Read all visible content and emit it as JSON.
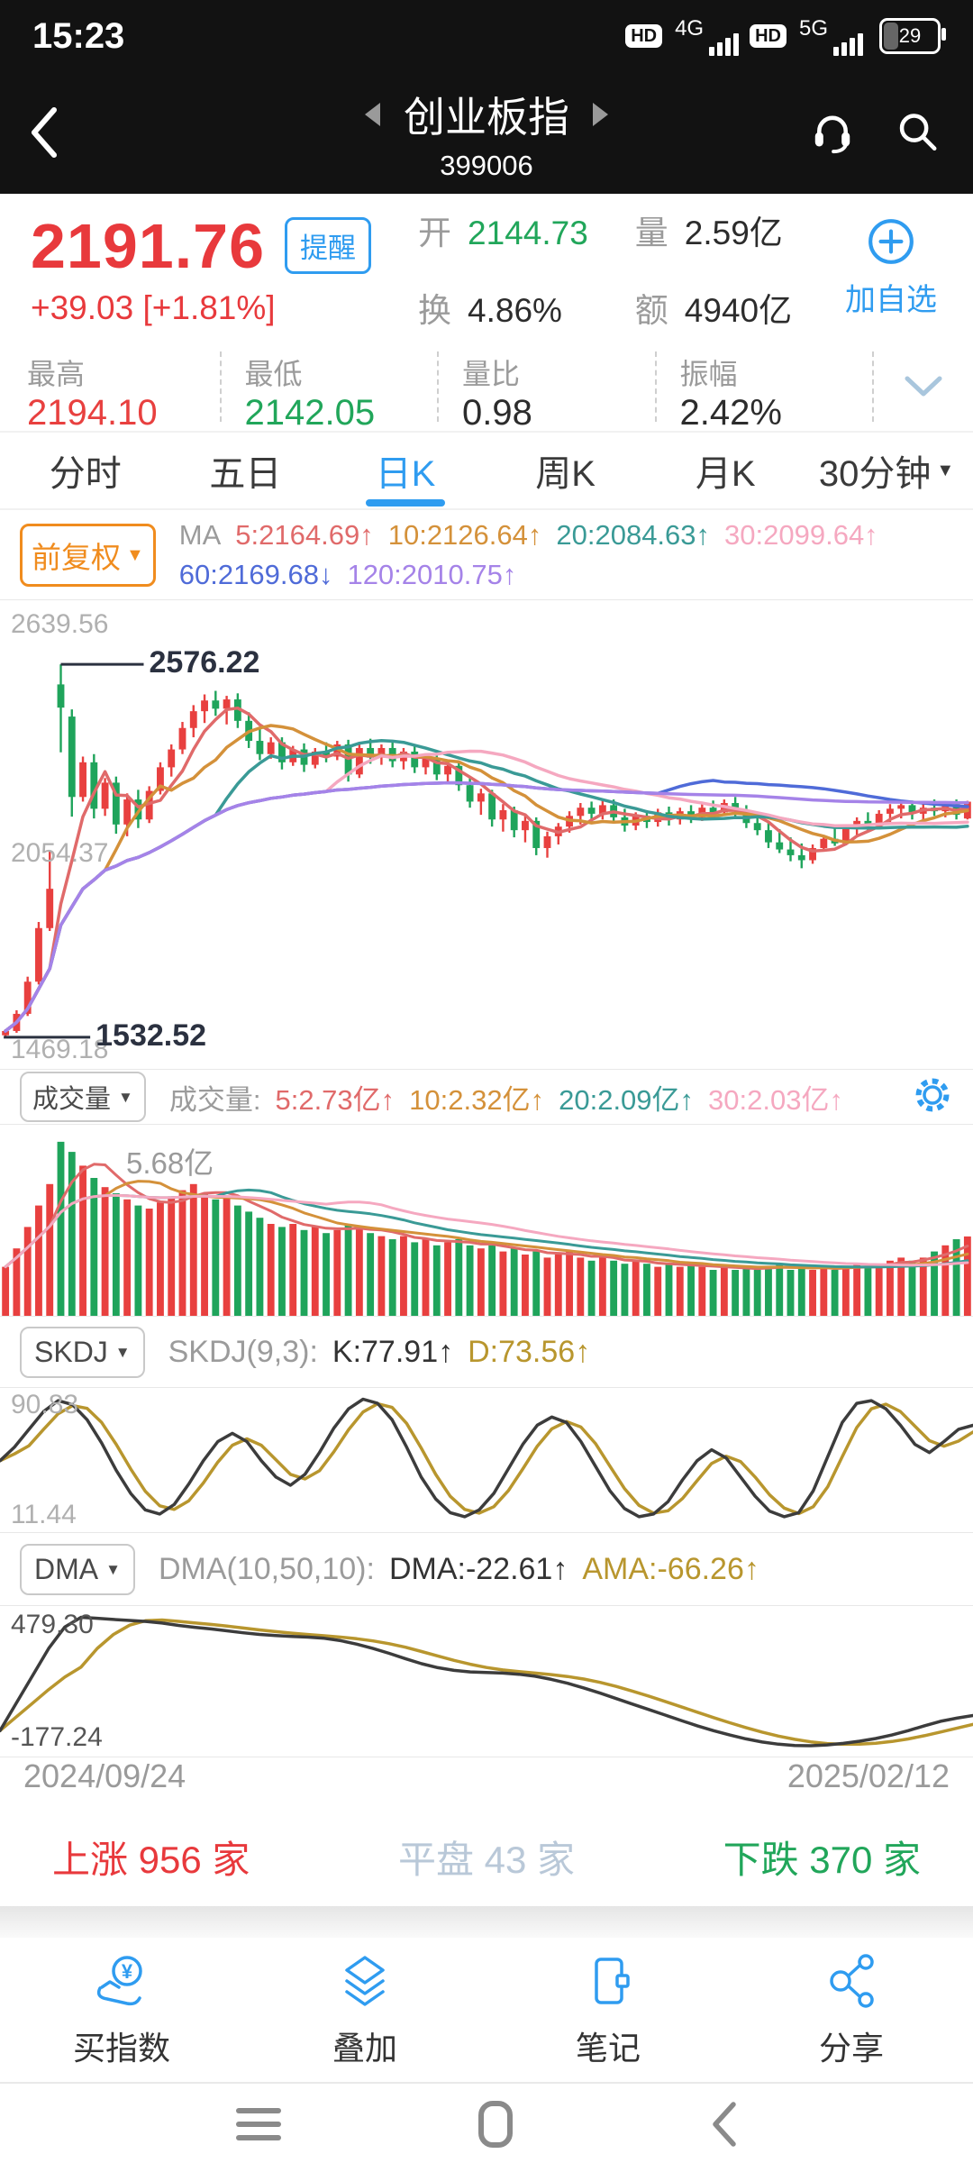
{
  "colors": {
    "up": "#e8403f",
    "down": "#1fa45b",
    "accent": "#2f9cf0",
    "flat": "#b9c8d8"
  },
  "icons": {
    "caret": "▼",
    "yuan": "¥"
  },
  "status_bar": {
    "time": "15:23",
    "hd": "HD",
    "net1": "4G",
    "net2": "5G",
    "battery": "29"
  },
  "nav": {
    "title": "创业板指",
    "code": "399006"
  },
  "quote": {
    "price": "2191.76",
    "alert_label": "提醒",
    "change": "+39.03 [+1.81%]",
    "add_watch": "加自选",
    "fields": [
      {
        "label": "开",
        "value": "2144.73",
        "color": "#21a65a"
      },
      {
        "label": "量",
        "value": "2.59亿",
        "color": "#2c2c2c"
      },
      {
        "label": "换",
        "value": "4.86%",
        "color": "#2c2c2c"
      },
      {
        "label": "额",
        "value": "4940亿",
        "color": "#2c2c2c"
      }
    ]
  },
  "stats": [
    {
      "label": "最高",
      "value": "2194.10",
      "color": "#e8403f"
    },
    {
      "label": "最低",
      "value": "2142.05",
      "color": "#21a65a"
    },
    {
      "label": "量比",
      "value": "0.98",
      "color": "#2c2c2c"
    },
    {
      "label": "振幅",
      "value": "2.42%",
      "color": "#2c2c2c"
    }
  ],
  "tabs": {
    "items": [
      "分时",
      "五日",
      "日K",
      "周K",
      "月K"
    ],
    "active": "日K",
    "dropdown": "30分钟"
  },
  "indicators": {
    "adjust": "前复权",
    "ma_prefix": "MA",
    "ma_line1": [
      {
        "text": "5:2164.69↑",
        "color": "#e06a6a"
      },
      {
        "text": "10:2126.64↑",
        "color": "#d4913a"
      },
      {
        "text": "20:2084.63↑",
        "color": "#3a9a96"
      },
      {
        "text": "30:2099.64↑",
        "color": "#f5a8c0"
      }
    ],
    "ma_line2": [
      {
        "text": "60:2169.68↓",
        "color": "#4f6bd8"
      },
      {
        "text": "120:2010.75↑",
        "color": "#a583e8"
      }
    ]
  },
  "panels": {
    "volume": {
      "button": "成交量",
      "prefix": "成交量:",
      "segments": [
        {
          "text": "5:2.73亿↑",
          "color": "#e06a6a"
        },
        {
          "text": "10:2.32亿↑",
          "color": "#d4913a"
        },
        {
          "text": "20:2.09亿↑",
          "color": "#3a9a96"
        },
        {
          "text": "30:2.03亿↑",
          "color": "#f5a8c0"
        }
      ]
    },
    "skdj": {
      "button": "SKDJ",
      "prefix": "SKDJ(9,3):",
      "k_color": "#3c3c3c",
      "d_color": "#b8962e",
      "segments": [
        {
          "text": "K:77.91↑",
          "color": "#333333"
        },
        {
          "text": "D:73.56↑",
          "color": "#b8962e"
        }
      ]
    },
    "dma": {
      "button": "DMA",
      "prefix": "DMA(10,50,10):",
      "k_color": "#3c3c3c",
      "d_color": "#b8962e",
      "segments": [
        {
          "text": "DMA:-22.61↑",
          "color": "#333333"
        },
        {
          "text": "AMA:-66.26↑",
          "color": "#b8962e"
        }
      ]
    }
  },
  "breadth": [
    {
      "text": "上涨 956 家",
      "color": "#e8393c"
    },
    {
      "text": "平盘 43 家",
      "color": "#b9c8d8"
    },
    {
      "text": "下跌 370 家",
      "color": "#21a65a"
    }
  ],
  "toolbar": {
    "items": [
      {
        "label": "买指数",
        "icon": "buy-index-icon"
      },
      {
        "label": "叠加",
        "icon": "overlay-icon"
      },
      {
        "label": "笔记",
        "icon": "note-icon"
      },
      {
        "label": "分享",
        "icon": "share-icon"
      }
    ]
  },
  "chart_data": {
    "type": "candlestick+indicators",
    "date_range": [
      "2024/09/24",
      "2025/02/12"
    ],
    "main": {
      "axis_max": "2639.56",
      "axis_mid": "2054.37",
      "axis_min": "1469.18",
      "high_annotation": "2576.22",
      "low_annotation": "1532.52",
      "vmax": 2639.56,
      "vmin": 1469.18,
      "high_value": 2576.22,
      "low_value": 1532.52,
      "mid_value": 2054.37,
      "ma": [
        {
          "n": 5,
          "color": "#e06a6a"
        },
        {
          "n": 10,
          "color": "#d4913a"
        },
        {
          "n": 20,
          "color": "#3a9a96"
        },
        {
          "n": 30,
          "color": "#f5a8c0"
        },
        {
          "n": 60,
          "color": "#4f6bd8"
        },
        {
          "n": 120,
          "color": "#a583e8"
        }
      ],
      "candles": [
        [
          1538,
          1555,
          1532.52,
          1550
        ],
        [
          1550,
          1608,
          1545,
          1598
        ],
        [
          1598,
          1702,
          1592,
          1688
        ],
        [
          1688,
          1855,
          1680,
          1838
        ],
        [
          1838,
          2052,
          1830,
          1948
        ],
        [
          2520,
          2576.22,
          2330,
          2455
        ],
        [
          2430,
          2450,
          2150,
          2205
        ],
        [
          2205,
          2318,
          2192,
          2302
        ],
        [
          2302,
          2325,
          2145,
          2172
        ],
        [
          2172,
          2258,
          2152,
          2245
        ],
        [
          2245,
          2262,
          2102,
          2128
        ],
        [
          2128,
          2215,
          2095,
          2198
        ],
        [
          2198,
          2225,
          2118,
          2142
        ],
        [
          2142,
          2235,
          2132,
          2222
        ],
        [
          2222,
          2302,
          2212,
          2288
        ],
        [
          2288,
          2352,
          2262,
          2338
        ],
        [
          2338,
          2415,
          2325,
          2398
        ],
        [
          2398,
          2462,
          2372,
          2445
        ],
        [
          2445,
          2492,
          2412,
          2475
        ],
        [
          2475,
          2502,
          2432,
          2452
        ],
        [
          2452,
          2488,
          2408,
          2478
        ],
        [
          2478,
          2495,
          2398,
          2418
        ],
        [
          2418,
          2442,
          2342,
          2362
        ],
        [
          2362,
          2395,
          2308,
          2325
        ],
        [
          2325,
          2372,
          2312,
          2358
        ],
        [
          2358,
          2372,
          2282,
          2302
        ],
        [
          2302,
          2348,
          2292,
          2338
        ],
        [
          2338,
          2355,
          2275,
          2295
        ],
        [
          2295,
          2342,
          2285,
          2332
        ],
        [
          2332,
          2358,
          2302,
          2318
        ],
        [
          2318,
          2362,
          2308,
          2352
        ],
        [
          2352,
          2365,
          2248,
          2268
        ],
        [
          2268,
          2352,
          2258,
          2342
        ],
        [
          2342,
          2368,
          2298,
          2315
        ],
        [
          2315,
          2352,
          2295,
          2342
        ],
        [
          2342,
          2362,
          2288,
          2305
        ],
        [
          2305,
          2342,
          2282,
          2332
        ],
        [
          2332,
          2348,
          2272,
          2288
        ],
        [
          2288,
          2325,
          2268,
          2312
        ],
        [
          2312,
          2325,
          2252,
          2268
        ],
        [
          2268,
          2305,
          2245,
          2292
        ],
        [
          2292,
          2302,
          2222,
          2238
        ],
        [
          2238,
          2262,
          2175,
          2192
        ],
        [
          2192,
          2228,
          2155,
          2215
        ],
        [
          2215,
          2225,
          2122,
          2142
        ],
        [
          2142,
          2185,
          2108,
          2168
        ],
        [
          2168,
          2178,
          2092,
          2112
        ],
        [
          2112,
          2152,
          2078,
          2138
        ],
        [
          2138,
          2148,
          2042,
          2062
        ],
        [
          2062,
          2108,
          2035,
          2095
        ],
        [
          2095,
          2132,
          2072,
          2122
        ],
        [
          2122,
          2165,
          2105,
          2152
        ],
        [
          2152,
          2188,
          2128,
          2175
        ],
        [
          2175,
          2192,
          2135,
          2158
        ],
        [
          2158,
          2195,
          2142,
          2182
        ],
        [
          2182,
          2198,
          2132,
          2148
        ],
        [
          2148,
          2172,
          2108,
          2125
        ],
        [
          2125,
          2162,
          2112,
          2152
        ],
        [
          2152,
          2168,
          2118,
          2135
        ],
        [
          2135,
          2172,
          2122,
          2162
        ],
        [
          2162,
          2178,
          2125,
          2142
        ],
        [
          2142,
          2175,
          2128,
          2165
        ],
        [
          2165,
          2182,
          2132,
          2148
        ],
        [
          2148,
          2185,
          2138,
          2175
        ],
        [
          2175,
          2195,
          2145,
          2162
        ],
        [
          2162,
          2198,
          2152,
          2188
        ],
        [
          2188,
          2205,
          2148,
          2165
        ],
        [
          2165,
          2182,
          2118,
          2132
        ],
        [
          2132,
          2158,
          2098,
          2112
        ],
        [
          2112,
          2135,
          2062,
          2078
        ],
        [
          2078,
          2115,
          2048,
          2058
        ],
        [
          2058,
          2092,
          2025,
          2042
        ],
        [
          2042,
          2075,
          2005.5,
          2028
        ],
        [
          2028,
          2072,
          2018,
          2062
        ],
        [
          2062,
          2098,
          2052,
          2088
        ],
        [
          2088,
          2122,
          2068,
          2075
        ],
        [
          2075,
          2125,
          2070,
          2115
        ],
        [
          2115,
          2148,
          2095,
          2138
        ],
        [
          2138,
          2162,
          2112,
          2128
        ],
        [
          2128,
          2168,
          2118,
          2158
        ],
        [
          2158,
          2185,
          2132,
          2172
        ],
        [
          2172,
          2192,
          2145,
          2182
        ],
        [
          2182,
          2195,
          2142,
          2158
        ],
        [
          2158,
          2185,
          2135,
          2175
        ],
        [
          2175,
          2198,
          2152,
          2165
        ],
        [
          2165,
          2192,
          2148,
          2185
        ],
        [
          2185,
          2198,
          2142,
          2155
        ],
        [
          2144.73,
          2194.1,
          2142.05,
          2191.76
        ]
      ]
    },
    "volume": {
      "label": "5.68亿",
      "vmax": 6.0,
      "ma": [
        {
          "n": 5,
          "color": "#e06a6a"
        },
        {
          "n": 10,
          "color": "#d4913a"
        },
        {
          "n": 20,
          "color": "#3a9a96"
        },
        {
          "n": 30,
          "color": "#f5a8c0"
        }
      ],
      "values": [
        1.6,
        2.2,
        2.9,
        3.6,
        4.3,
        5.68,
        5.35,
        4.9,
        4.5,
        4.2,
        4.0,
        3.8,
        3.6,
        3.5,
        3.7,
        3.9,
        4.1,
        4.3,
        4.0,
        3.8,
        3.9,
        3.6,
        3.4,
        3.2,
        3.0,
        2.9,
        3.0,
        2.8,
        2.9,
        2.7,
        2.8,
        3.0,
        2.9,
        2.7,
        2.6,
        2.5,
        2.6,
        2.4,
        2.5,
        2.3,
        2.4,
        2.5,
        2.3,
        2.2,
        2.3,
        2.1,
        2.2,
        2.0,
        2.1,
        1.9,
        2.0,
        2.1,
        1.9,
        1.8,
        1.9,
        1.8,
        1.7,
        1.8,
        1.7,
        1.6,
        1.7,
        1.6,
        1.7,
        1.6,
        1.5,
        1.6,
        1.5,
        1.6,
        1.5,
        1.6,
        1.7,
        1.5,
        1.6,
        1.5,
        1.6,
        1.5,
        1.6,
        1.7,
        1.6,
        1.7,
        1.8,
        1.9,
        1.8,
        1.9,
        2.1,
        2.3,
        2.5,
        2.59
      ]
    },
    "skdj": {
      "max_label": "90.83",
      "min_label": "11.44",
      "k": [
        52,
        62,
        75,
        88,
        96,
        93,
        82,
        65,
        45,
        28,
        16,
        13,
        20,
        35,
        52,
        66,
        72,
        66,
        52,
        40,
        34,
        42,
        58,
        76,
        90,
        97,
        94,
        82,
        62,
        40,
        24,
        14,
        11,
        16,
        28,
        46,
        64,
        78,
        84,
        80,
        66,
        48,
        30,
        17,
        11,
        13,
        22,
        38,
        52,
        60,
        54,
        40,
        26,
        15,
        11,
        14,
        30,
        55,
        80,
        94,
        96,
        90,
        78,
        64,
        58,
        66,
        75,
        77.91
      ]
    },
    "dma": {
      "max_label": "479.30",
      "min_label": "-177.24",
      "dma": [
        -100,
        40,
        180,
        320,
        430,
        479.3,
        474,
        468,
        463,
        458,
        450,
        438,
        428,
        420,
        410,
        400,
        392,
        386,
        381,
        378,
        372,
        360,
        342,
        320,
        295,
        268,
        242,
        222,
        208,
        200,
        197,
        194,
        188,
        178,
        162,
        142,
        118,
        92,
        64,
        36,
        8,
        -20,
        -48,
        -75,
        -100,
        -122,
        -142,
        -158,
        -169,
        -176,
        -177.2,
        -173,
        -165,
        -154,
        -140,
        -122,
        -100,
        -75,
        -52,
        -36,
        -22.61
      ]
    }
  },
  "dates": {
    "start": "2024/09/24",
    "end": "2025/02/12"
  }
}
